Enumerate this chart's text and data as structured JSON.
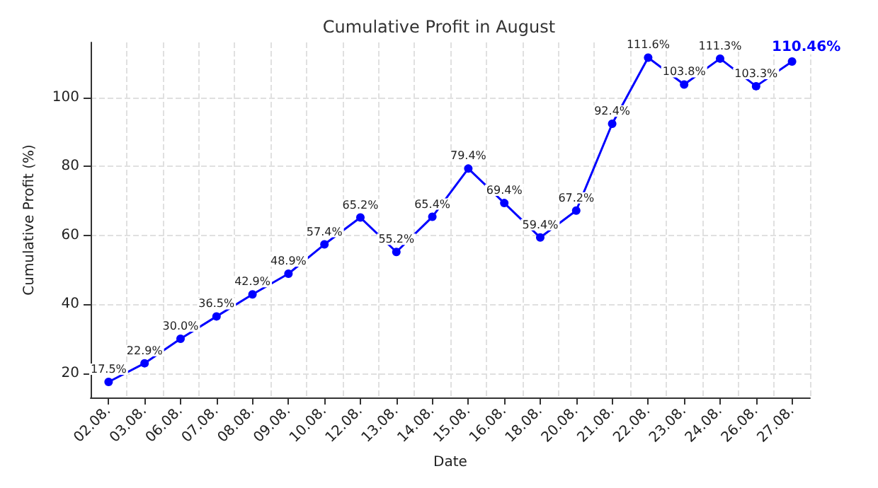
{
  "chart_data": {
    "type": "line",
    "title": "Cumulative Profit in August",
    "xlabel": "Date",
    "ylabel": "Cumulative Profit (%)",
    "categories": [
      "02.08.",
      "03.08.",
      "06.08.",
      "07.08.",
      "08.08.",
      "09.08.",
      "10.08.",
      "12.08.",
      "13.08.",
      "14.08.",
      "15.08.",
      "16.08.",
      "18.08.",
      "20.08.",
      "21.08.",
      "22.08.",
      "23.08.",
      "24.08.",
      "26.08.",
      "27.08."
    ],
    "series": [
      {
        "color": "#0000ff",
        "values": [
          17.5,
          22.9,
          30.0,
          36.5,
          42.9,
          48.9,
          57.4,
          65.2,
          55.2,
          65.4,
          79.4,
          69.4,
          59.4,
          67.2,
          92.4,
          111.6,
          103.8,
          111.3,
          103.3,
          110.46
        ],
        "value_labels": [
          "17.5%",
          "22.9%",
          "30.0%",
          "36.5%",
          "42.9%",
          "48.9%",
          "57.4%",
          "65.2%",
          "55.2%",
          "65.4%",
          "79.4%",
          "69.4%",
          "59.4%",
          "67.2%",
          "92.4%",
          "111.6%",
          "103.8%",
          "111.3%",
          "103.3%",
          "110.46%"
        ]
      }
    ],
    "ylim": [
      13,
      116
    ],
    "yticks": [
      20,
      40,
      60,
      80,
      100
    ],
    "grid": true,
    "marker": "circle",
    "line_style": "solid"
  }
}
